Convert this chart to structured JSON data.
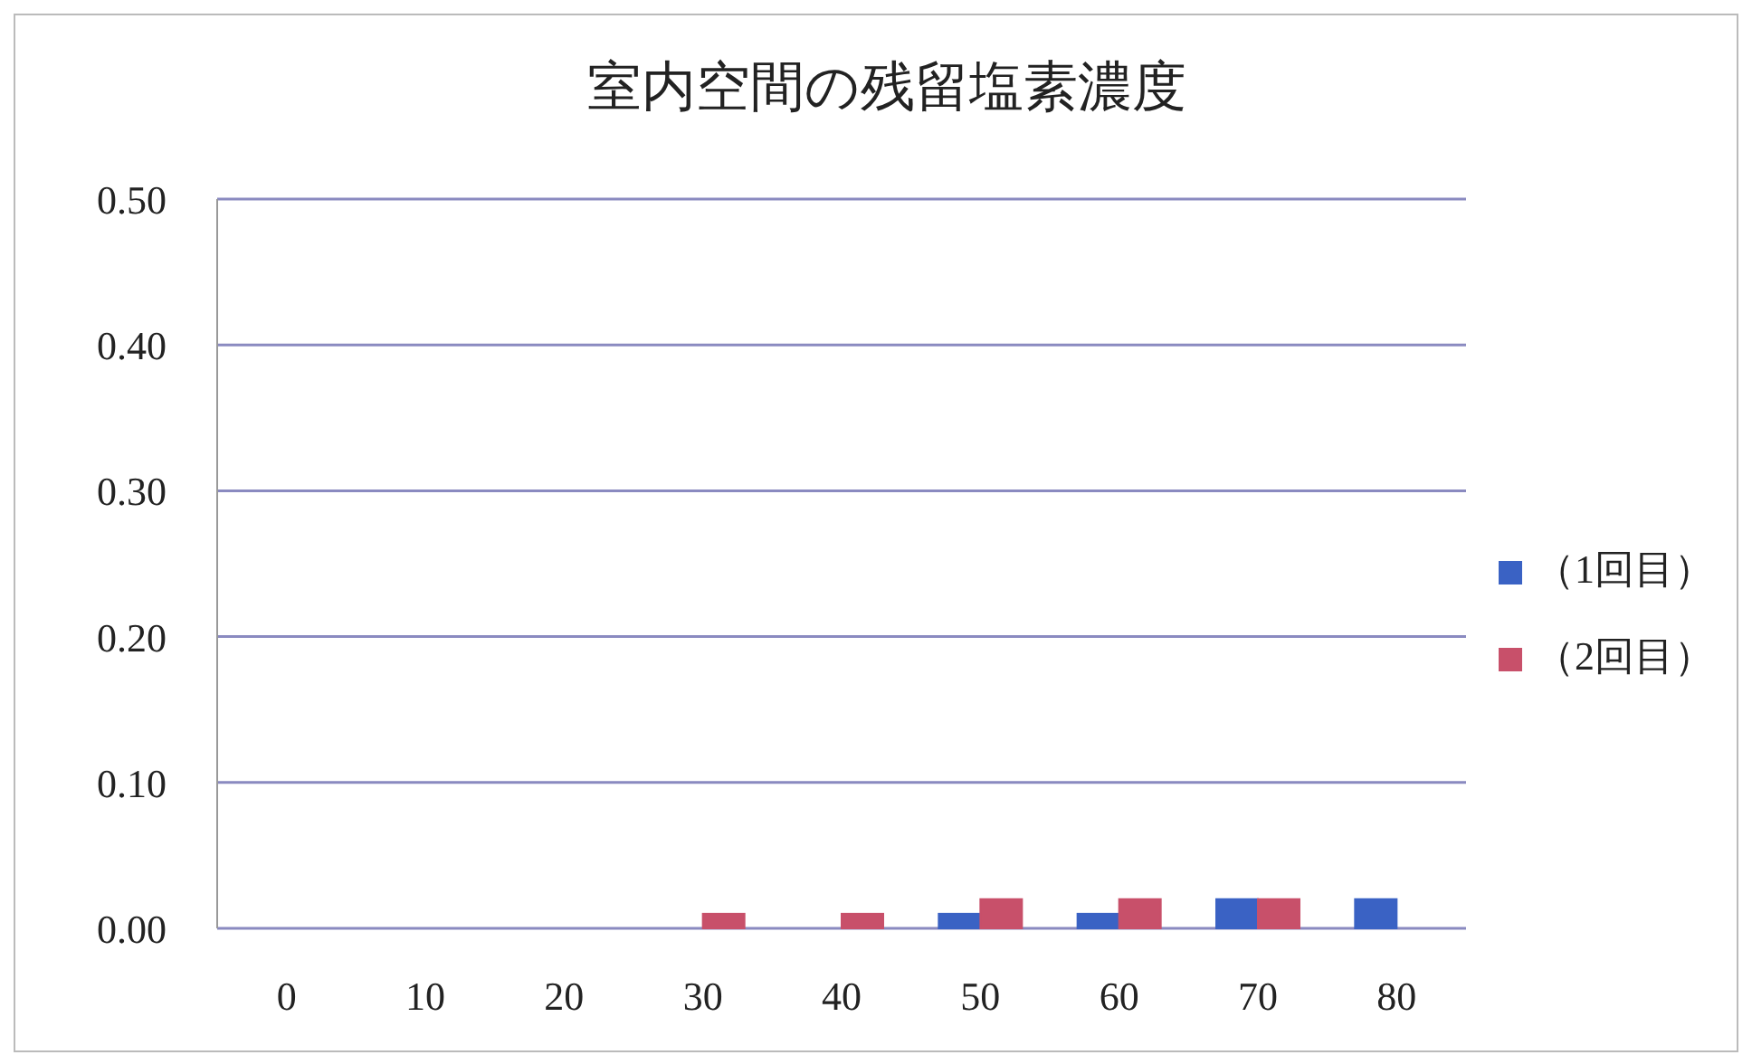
{
  "chart_data": {
    "type": "bar",
    "title": "室内空間の残留塩素濃度",
    "categories": [
      "0",
      "10",
      "20",
      "30",
      "40",
      "50",
      "60",
      "70",
      "80"
    ],
    "series": [
      {
        "name": "（1回目）",
        "color": "#3a62c4",
        "values": [
          0,
          0,
          0,
          0,
          0,
          0.01,
          0.01,
          0.02,
          0.02
        ]
      },
      {
        "name": "（2回目）",
        "color": "#c8506a",
        "values": [
          0,
          0,
          0,
          0.01,
          0.01,
          0.02,
          0.02,
          0.02,
          null
        ]
      }
    ],
    "ylim": [
      0,
      0.5
    ],
    "yticks": [
      {
        "value": 0,
        "label": "0.00"
      },
      {
        "value": 0.1,
        "label": "0.10"
      },
      {
        "value": 0.2,
        "label": "0.20"
      },
      {
        "value": 0.3,
        "label": "0.30"
      },
      {
        "value": 0.4,
        "label": "0.40"
      },
      {
        "value": 0.5,
        "label": "0.50"
      }
    ],
    "grid": "y",
    "legend": "right"
  }
}
